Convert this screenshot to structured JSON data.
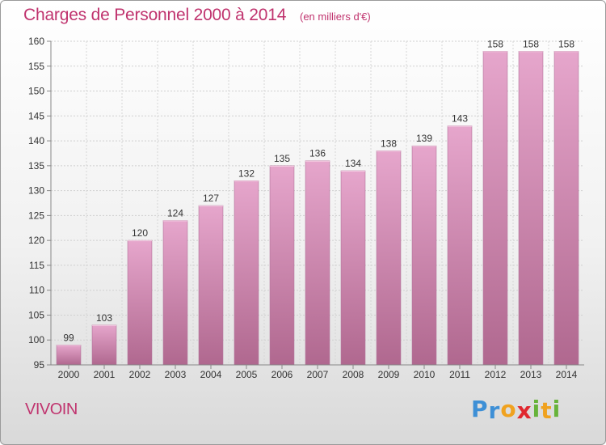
{
  "title": "Charges de Personnel 2000 à 2014",
  "unit_note": "(en milliers d'€)",
  "place_name": "VIVOIN",
  "logo": {
    "letters": [
      {
        "ch": "P",
        "color": "#3d8fd6"
      },
      {
        "ch": "r",
        "color": "#3d8fd6"
      },
      {
        "ch": "o",
        "color": "#f0a21f"
      },
      {
        "ch": "x",
        "color": "#e0282f"
      },
      {
        "ch": "i",
        "color": "#67b33a"
      },
      {
        "ch": "t",
        "color": "#f0a21f"
      },
      {
        "ch": "i",
        "color": "#67b33a"
      }
    ]
  },
  "colors": {
    "bar_top": "#e6a6cc",
    "bar_bottom": "#b0688f",
    "accent": "#c0336e"
  },
  "chart_data": {
    "type": "bar",
    "title": "Charges de Personnel 2000 à 2014",
    "subtitle": "(en milliers d'€)",
    "xlabel": "",
    "ylabel": "",
    "ylim": [
      95,
      160
    ],
    "yticks": [
      95,
      100,
      105,
      110,
      115,
      120,
      125,
      130,
      135,
      140,
      145,
      150,
      155,
      160
    ],
    "grid": true,
    "categories": [
      "2000",
      "2001",
      "2002",
      "2003",
      "2004",
      "2005",
      "2006",
      "2007",
      "2008",
      "2009",
      "2010",
      "2011",
      "2012",
      "2013",
      "2014"
    ],
    "values": [
      99,
      103,
      120,
      124,
      127,
      132,
      135,
      136,
      134,
      138,
      139,
      143,
      158,
      158,
      158
    ]
  }
}
